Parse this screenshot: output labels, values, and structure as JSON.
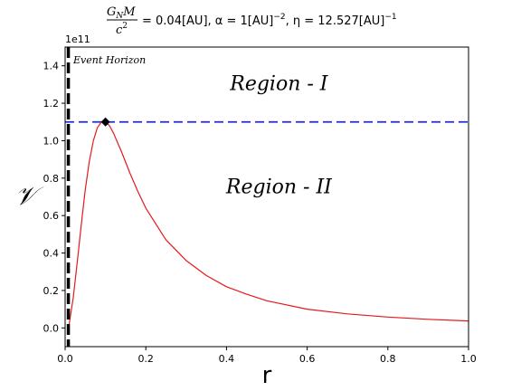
{
  "chart_data": {
    "type": "line",
    "title": {
      "frac_num": "G_N M",
      "frac_num_main": "G",
      "frac_num_sub": "N",
      "frac_num_rest": "M",
      "frac_den": "c",
      "frac_den_sup": "2",
      "rest": "= 0.04[AU], α = 1[AU]",
      "rest_sup1": "−2",
      "rest2": ", η = 12.527[AU]",
      "rest_sup2": "−1"
    },
    "xlabel": "r",
    "ylabel": "𝒱",
    "y_multiplier": "1e11",
    "xlim": [
      0.0,
      1.0
    ],
    "ylim": [
      -0.1,
      1.5
    ],
    "x_ticks": [
      0.0,
      0.2,
      0.4,
      0.6,
      0.8,
      1.0
    ],
    "x_tick_labels": [
      "0.0",
      "0.2",
      "0.4",
      "0.6",
      "0.8",
      "1.0"
    ],
    "y_ticks": [
      0.0,
      0.2,
      0.4,
      0.6,
      0.8,
      1.0,
      1.2,
      1.4
    ],
    "y_tick_labels": [
      "0.0",
      "0.2",
      "0.4",
      "0.6",
      "0.8",
      "1.0",
      "1.2",
      "1.4"
    ],
    "grid": false,
    "event_horizon": {
      "x": 0.008,
      "label": "Event Horizon",
      "color": "#000000"
    },
    "threshold_line": {
      "y": 1.1,
      "color": "#1f2fd0"
    },
    "max_marker": {
      "x": 0.1,
      "y": 1.1,
      "color": "#000000"
    },
    "annotations": [
      {
        "text": "Region - I",
        "x": 0.53,
        "y": 1.27
      },
      {
        "text": "Region - II",
        "x": 0.53,
        "y": 0.72
      }
    ],
    "series": [
      {
        "color": "#e31a1c",
        "x": [
          0.01,
          0.02,
          0.03,
          0.04,
          0.05,
          0.06,
          0.07,
          0.08,
          0.09,
          0.1,
          0.11,
          0.12,
          0.14,
          0.16,
          0.18,
          0.2,
          0.25,
          0.3,
          0.35,
          0.4,
          0.45,
          0.5,
          0.6,
          0.7,
          0.8,
          0.9,
          1.0
        ],
        "y": [
          0.02,
          0.16,
          0.35,
          0.55,
          0.74,
          0.89,
          1.0,
          1.07,
          1.1,
          1.1,
          1.08,
          1.04,
          0.94,
          0.83,
          0.73,
          0.64,
          0.47,
          0.36,
          0.28,
          0.22,
          0.18,
          0.145,
          0.1,
          0.075,
          0.058,
          0.046,
          0.037
        ]
      }
    ]
  }
}
